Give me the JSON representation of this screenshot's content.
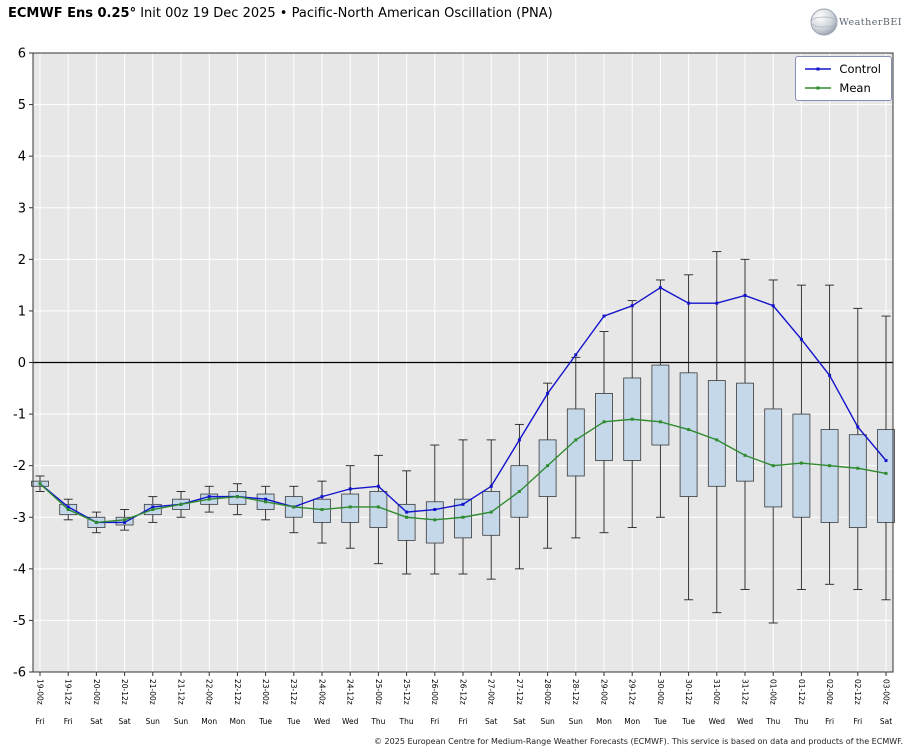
{
  "header": {
    "title_bold": "ECMWF Ens 0.25°",
    "title_rest": " Init 00z 19 Dec 2025 • Pacific-North American Oscillation (PNA)"
  },
  "logo": {
    "text": "WeatherBELL"
  },
  "legend": {
    "items": [
      {
        "label": "Control",
        "color": "#1414cc"
      },
      {
        "label": "Mean",
        "color": "#2e8b2e"
      }
    ]
  },
  "footer": {
    "copyright": "© 2025 European Centre for Medium-Range Weather Forecasts (ECMWF). This service is based on data and products of the ECMWF."
  },
  "chart_data": {
    "type": "box+line",
    "title": "ECMWF Ens 0.25° Init 00z 19 Dec 2025 • Pacific-North American Oscillation (PNA)",
    "xlabel": "",
    "ylabel": "",
    "ylim": [
      -6,
      6
    ],
    "yticks": [
      -6,
      -5,
      -4,
      -3,
      -2,
      -1,
      0,
      1,
      2,
      3,
      4,
      5,
      6
    ],
    "grid": true,
    "legend_position": "upper right",
    "categories": [
      "19-00z",
      "19-12z",
      "20-00z",
      "20-12z",
      "21-00z",
      "21-12z",
      "22-00z",
      "22-12z",
      "23-00z",
      "23-12z",
      "24-00z",
      "24-12z",
      "25-00z",
      "25-12z",
      "26-00z",
      "26-12z",
      "27-00z",
      "27-12z",
      "28-00z",
      "28-12z",
      "29-00z",
      "29-12z",
      "30-00z",
      "30-12z",
      "31-00z",
      "31-12z",
      "01-00z",
      "01-12z",
      "02-00z",
      "02-12z",
      "03-00z"
    ],
    "day_labels": [
      "Fri",
      "Fri",
      "Sat",
      "Sat",
      "Sun",
      "Sun",
      "Mon",
      "Mon",
      "Tue",
      "Tue",
      "Wed",
      "Wed",
      "Thu",
      "Thu",
      "Fri",
      "Fri",
      "Sat",
      "Sat",
      "Sun",
      "Sun",
      "Mon",
      "Mon",
      "Tue",
      "Tue",
      "Wed",
      "Wed",
      "Thu",
      "Thu",
      "Fri",
      "Fri",
      "Sat"
    ],
    "series": [
      {
        "name": "Control",
        "color": "#1414cc",
        "values": [
          -2.35,
          -2.8,
          -3.1,
          -3.1,
          -2.8,
          -2.75,
          -2.6,
          -2.6,
          -2.65,
          -2.8,
          -2.6,
          -2.45,
          -2.4,
          -2.9,
          -2.85,
          -2.75,
          -2.4,
          -1.5,
          -0.6,
          0.15,
          0.9,
          1.1,
          1.45,
          1.15,
          1.15,
          1.3,
          1.1,
          0.45,
          -0.25,
          -1.25,
          -1.9
        ]
      },
      {
        "name": "Mean",
        "color": "#2e8b2e",
        "values": [
          -2.35,
          -2.85,
          -3.1,
          -3.05,
          -2.85,
          -2.75,
          -2.65,
          -2.6,
          -2.7,
          -2.8,
          -2.85,
          -2.8,
          -2.8,
          -3.0,
          -3.05,
          -3.0,
          -2.9,
          -2.5,
          -2.0,
          -1.5,
          -1.15,
          -1.1,
          -1.15,
          -1.3,
          -1.5,
          -1.8,
          -2.0,
          -1.95,
          -2.0,
          -2.05,
          -2.15
        ]
      }
    ],
    "boxes_note": "each box is [whisker_low, q1, q3, whisker_high]",
    "boxes": [
      [
        -2.5,
        -2.4,
        -2.3,
        -2.2
      ],
      [
        -3.05,
        -2.95,
        -2.75,
        -2.65
      ],
      [
        -3.3,
        -3.2,
        -3.0,
        -2.9
      ],
      [
        -3.25,
        -3.15,
        -3.0,
        -2.85
      ],
      [
        -3.1,
        -2.95,
        -2.75,
        -2.6
      ],
      [
        -3.0,
        -2.85,
        -2.65,
        -2.5
      ],
      [
        -2.9,
        -2.75,
        -2.55,
        -2.4
      ],
      [
        -2.95,
        -2.75,
        -2.5,
        -2.35
      ],
      [
        -3.05,
        -2.85,
        -2.55,
        -2.4
      ],
      [
        -3.3,
        -3.0,
        -2.6,
        -2.4
      ],
      [
        -3.5,
        -3.1,
        -2.65,
        -2.3
      ],
      [
        -3.6,
        -3.1,
        -2.55,
        -2.0
      ],
      [
        -3.9,
        -3.2,
        -2.5,
        -1.8
      ],
      [
        -4.1,
        -3.45,
        -2.75,
        -2.1
      ],
      [
        -4.1,
        -3.5,
        -2.7,
        -1.6
      ],
      [
        -4.1,
        -3.4,
        -2.65,
        -1.5
      ],
      [
        -4.2,
        -3.35,
        -2.5,
        -1.5
      ],
      [
        -4.0,
        -3.0,
        -2.0,
        -1.2
      ],
      [
        -3.6,
        -2.6,
        -1.5,
        -0.4
      ],
      [
        -3.4,
        -2.2,
        -0.9,
        0.1
      ],
      [
        -3.3,
        -1.9,
        -0.6,
        0.6
      ],
      [
        -3.2,
        -1.9,
        -0.3,
        1.2
      ],
      [
        -3.0,
        -1.6,
        -0.05,
        1.6
      ],
      [
        -4.6,
        -2.6,
        -0.2,
        1.7
      ],
      [
        -4.85,
        -2.4,
        -0.35,
        2.15
      ],
      [
        -4.4,
        -2.3,
        -0.4,
        2.0
      ],
      [
        -5.05,
        -2.8,
        -0.9,
        1.6
      ],
      [
        -4.4,
        -3.0,
        -1.0,
        1.5
      ],
      [
        -4.3,
        -3.1,
        -1.3,
        1.5
      ],
      [
        -4.4,
        -3.2,
        -1.4,
        1.05
      ],
      [
        -4.6,
        -3.1,
        -1.3,
        0.9
      ]
    ],
    "colors": {
      "background": "#e7e7e7",
      "grid": "#ffffff",
      "zero_line": "#000000",
      "box_fill": "#c5d8ea",
      "box_edge": "#3a3a3a",
      "whisker": "#222222",
      "control": "#1414cc",
      "mean": "#2e8b2e"
    }
  }
}
